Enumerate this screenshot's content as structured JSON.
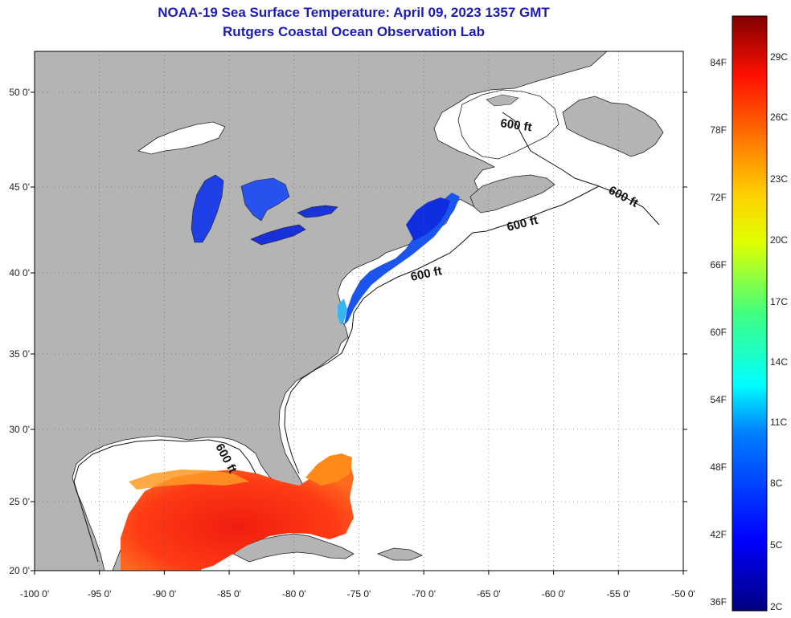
{
  "header": {
    "title": "NOAA-19 Sea Surface Temperature:  April 09, 2023 1357 GMT",
    "subtitle": "Rutgers Coastal Ocean Observation Lab"
  },
  "map": {
    "lon_range": [
      -100,
      -50
    ],
    "lat_range": [
      20,
      52
    ],
    "lon_ticks": [
      "-100 0'",
      "-95 0'",
      "-90 0'",
      "-85 0'",
      "-80 0'",
      "-75 0'",
      "-70 0'",
      "-65 0'",
      "-60 0'",
      "-55 0'",
      "-50 0'"
    ],
    "lat_ticks": [
      "20 0'",
      "25 0'",
      "30 0'",
      "35 0'",
      "40 0'",
      "45 0'",
      "50 0'"
    ],
    "contour_label": "600 ft",
    "land_color": "#b4b4b4",
    "water_color": "#ffffff"
  },
  "colorbar": {
    "fahrenheit_labels": [
      "36F",
      "42F",
      "48F",
      "54F",
      "60F",
      "66F",
      "72F",
      "78F",
      "84F"
    ],
    "celsius_labels": [
      "2C",
      "5C",
      "8C",
      "11C",
      "14C",
      "17C",
      "20C",
      "23C",
      "26C",
      "29C"
    ]
  }
}
